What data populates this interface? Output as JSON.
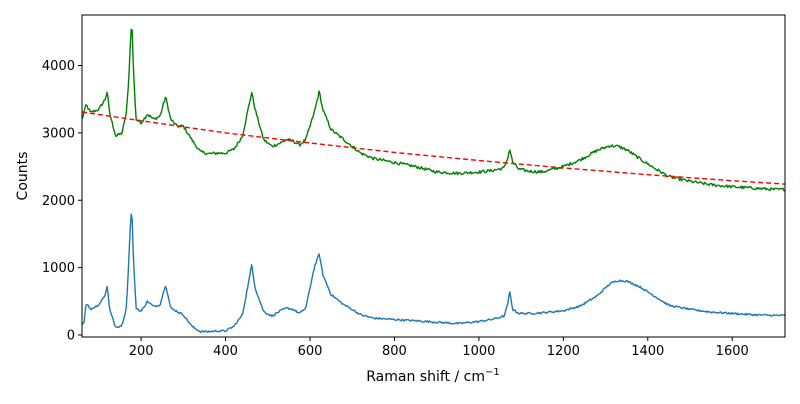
{
  "chart_data": {
    "type": "line",
    "title": "",
    "xlabel": "Raman shift / cm",
    "xlabel_superscript": "−1",
    "ylabel": "Counts",
    "xlim": [
      60,
      1725
    ],
    "ylim": [
      -30,
      4750
    ],
    "xticks": [
      200,
      400,
      600,
      800,
      1000,
      1200,
      1400,
      1600
    ],
    "yticks": [
      0,
      1000,
      2000,
      3000,
      4000
    ],
    "grid": false,
    "legend": "none",
    "series": [
      {
        "style": "solid",
        "color": "#008000",
        "noise": 22,
        "x": [
          60,
          70,
          80,
          100,
          115,
          120,
          125,
          140,
          155,
          165,
          170,
          175,
          178,
          182,
          188,
          200,
          215,
          230,
          245,
          258,
          270,
          285,
          300,
          320,
          340,
          360,
          380,
          400,
          420,
          440,
          455,
          462,
          470,
          490,
          510,
          530,
          545,
          560,
          575,
          590,
          610,
          622,
          630,
          650,
          680,
          700,
          720,
          750,
          800,
          850,
          900,
          950,
          1000,
          1030,
          1060,
          1068,
          1073,
          1080,
          1095,
          1120,
          1150,
          1200,
          1240,
          1280,
          1310,
          1330,
          1350,
          1380,
          1420,
          1450,
          1500,
          1550,
          1600,
          1650,
          1700,
          1725
        ],
        "y": [
          3200,
          3420,
          3300,
          3350,
          3500,
          3620,
          3300,
          2950,
          3000,
          3300,
          3700,
          4400,
          4700,
          3900,
          3200,
          3150,
          3280,
          3200,
          3250,
          3540,
          3200,
          3100,
          3100,
          2900,
          2720,
          2690,
          2700,
          2700,
          2760,
          2950,
          3400,
          3600,
          3350,
          2900,
          2800,
          2850,
          2900,
          2880,
          2820,
          2900,
          3300,
          3620,
          3350,
          3050,
          2900,
          2800,
          2700,
          2620,
          2560,
          2500,
          2420,
          2400,
          2420,
          2440,
          2480,
          2620,
          2760,
          2560,
          2460,
          2430,
          2420,
          2500,
          2600,
          2740,
          2810,
          2800,
          2750,
          2620,
          2460,
          2350,
          2280,
          2230,
          2200,
          2180,
          2160,
          2160
        ]
      },
      {
        "style": "dashed",
        "color": "#ff0000",
        "noise": 0,
        "x": [
          60,
          200,
          400,
          600,
          800,
          1000,
          1200,
          1400,
          1600,
          1725
        ],
        "y": [
          3310,
          3180,
          3000,
          2850,
          2710,
          2590,
          2480,
          2380,
          2290,
          2240
        ]
      },
      {
        "style": "solid",
        "color": "#1f77b4",
        "noise": 14,
        "x": [
          60,
          65,
          70,
          80,
          100,
          115,
          120,
          125,
          140,
          155,
          165,
          170,
          175,
          178,
          182,
          188,
          200,
          215,
          230,
          245,
          258,
          270,
          285,
          300,
          320,
          340,
          360,
          380,
          400,
          420,
          440,
          455,
          462,
          470,
          490,
          510,
          530,
          545,
          560,
          575,
          590,
          610,
          622,
          630,
          650,
          680,
          700,
          720,
          750,
          800,
          850,
          900,
          950,
          1000,
          1030,
          1060,
          1068,
          1073,
          1080,
          1095,
          1120,
          1150,
          1200,
          1240,
          1280,
          1310,
          1330,
          1350,
          1380,
          1420,
          1450,
          1500,
          1550,
          1600,
          1650,
          1700,
          1725
        ],
        "y": [
          150,
          200,
          480,
          380,
          450,
          600,
          730,
          400,
          100,
          150,
          400,
          1000,
          1700,
          1880,
          1100,
          400,
          350,
          500,
          420,
          450,
          750,
          400,
          350,
          300,
          130,
          50,
          50,
          60,
          60,
          130,
          300,
          800,
          1040,
          700,
          350,
          280,
          360,
          400,
          380,
          320,
          400,
          1000,
          1210,
          900,
          600,
          450,
          380,
          300,
          250,
          230,
          210,
          190,
          170,
          200,
          230,
          280,
          450,
          640,
          380,
          320,
          320,
          330,
          360,
          430,
          580,
          760,
          810,
          800,
          720,
          560,
          440,
          380,
          340,
          320,
          300,
          290,
          290
        ]
      }
    ]
  }
}
